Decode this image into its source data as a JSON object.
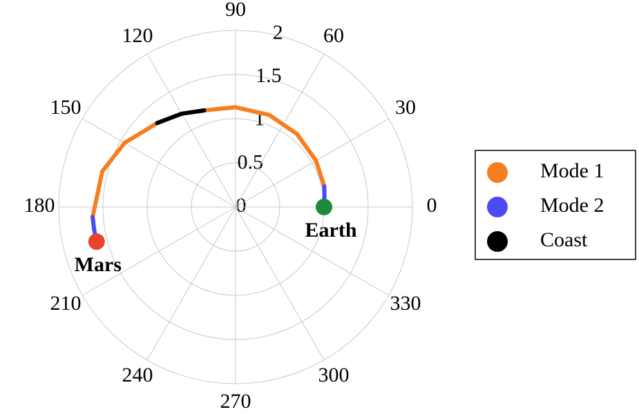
{
  "chart_data": {
    "type": "polar",
    "rlim": [
      0,
      2
    ],
    "rticks": [
      0,
      0.5,
      1,
      1.5,
      2
    ],
    "thetaticks": [
      0,
      30,
      60,
      90,
      120,
      150,
      180,
      210,
      240,
      270,
      300,
      330
    ],
    "grid": true,
    "legend": "right",
    "series": [
      {
        "name": "Mode 1",
        "color": "#f57f20",
        "theta": [
          13,
          30,
          50,
          70,
          90,
          108,
          120,
          133,
          150,
          165,
          184
        ],
        "r": [
          1.03,
          1.05,
          1.08,
          1.11,
          1.13,
          1.15,
          1.22,
          1.3,
          1.45,
          1.56,
          1.62
        ]
      },
      {
        "name": "Mode 2",
        "color": "#4b4bf0",
        "theta": [
          0,
          6,
          13,
          null,
          184,
          189,
          194
        ],
        "r": [
          1,
          1.01,
          1.03,
          null,
          1.62,
          1.62,
          1.62
        ]
      },
      {
        "name": "Coast",
        "color": "#000000",
        "theta": [
          108,
          120,
          133
        ],
        "r": [
          1.15,
          1.22,
          1.3
        ]
      }
    ],
    "annotations": [
      {
        "label": "Earth",
        "theta": 0,
        "r": 1,
        "color": "#1f8a3c"
      },
      {
        "label": "Mars",
        "theta": 194,
        "r": 1.62,
        "color": "#e8452c"
      }
    ]
  }
}
